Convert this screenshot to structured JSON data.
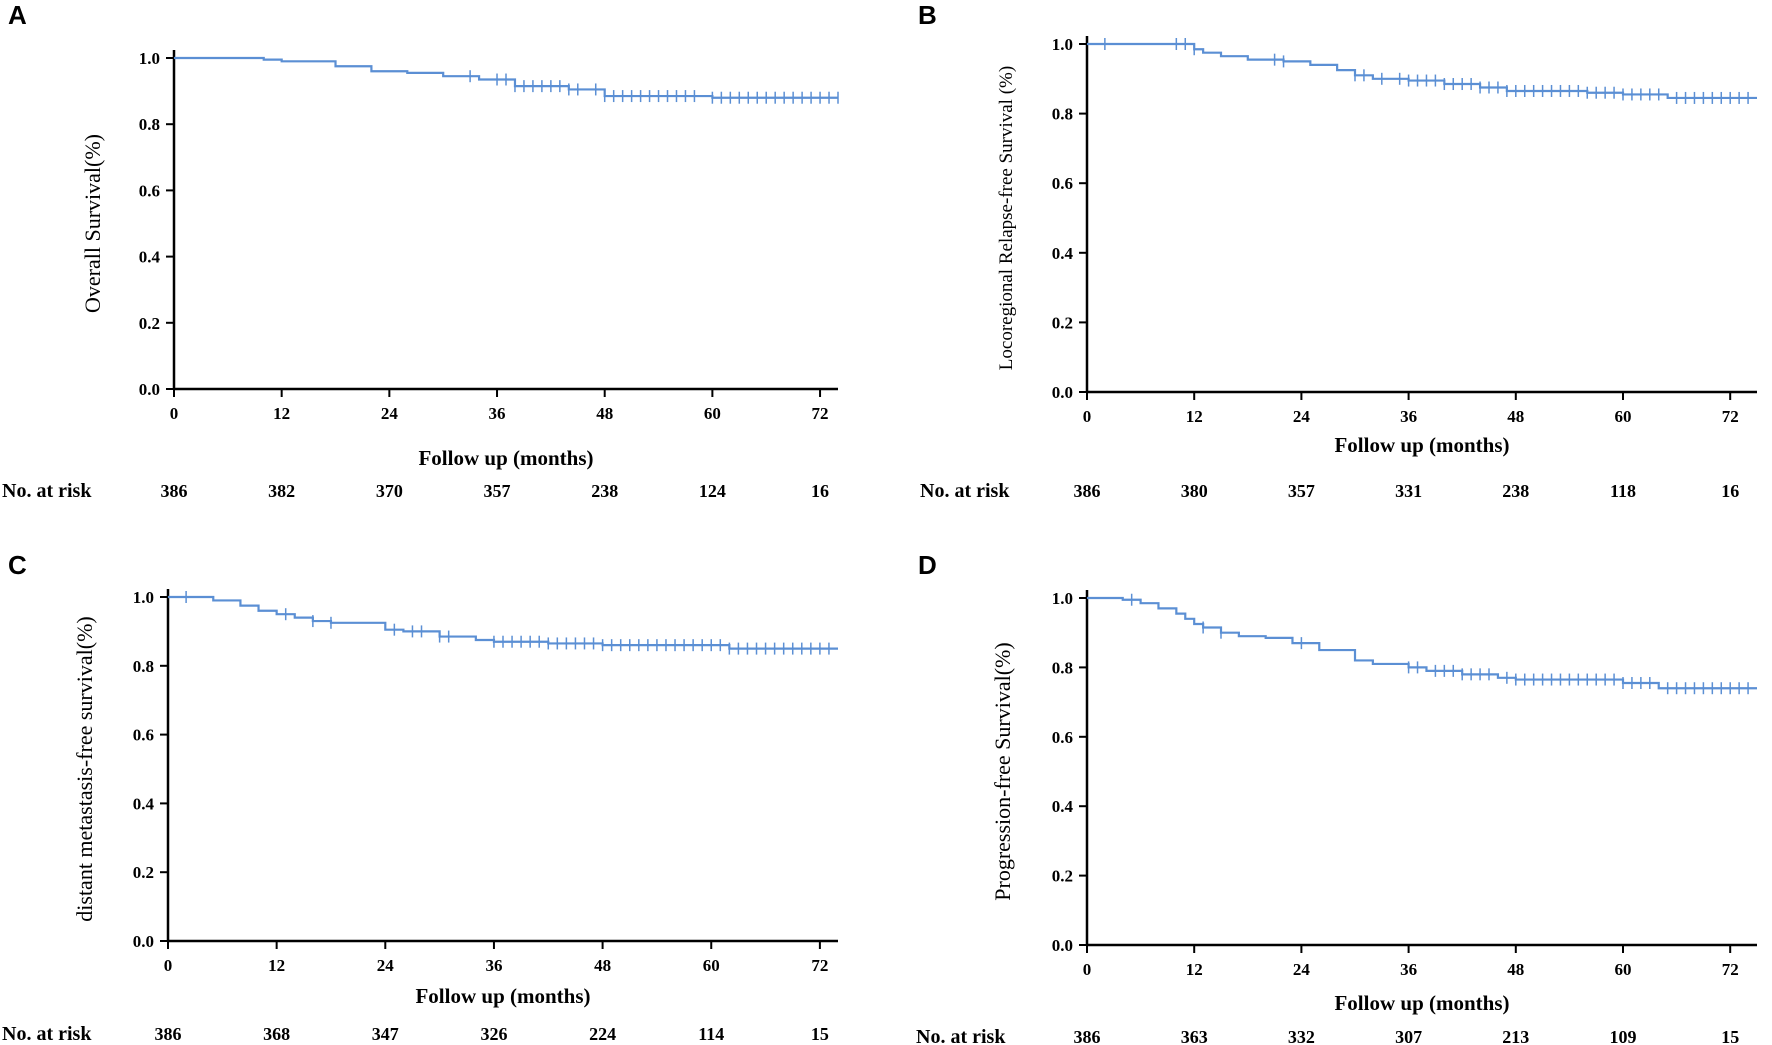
{
  "chart_data": [
    {
      "type": "line",
      "panel_label": "A",
      "title": "",
      "xlabel": "Follow up (months)",
      "ylabel": "Overall Survival(%)",
      "xlim": [
        0,
        74
      ],
      "ylim": [
        0,
        1
      ],
      "xticks": [
        "0",
        "12",
        "24",
        "36",
        "48",
        "60",
        "72"
      ],
      "yticks": [
        "0.0",
        "0.2",
        "0.4",
        "0.6",
        "0.8",
        "1.0"
      ],
      "series": [
        {
          "name": "Overall Survival",
          "color": "#5b8fd4",
          "x": [
            0,
            10,
            12,
            18,
            22,
            26,
            30,
            34,
            38,
            44,
            48,
            56,
            60,
            74
          ],
          "y": [
            1.0,
            0.995,
            0.99,
            0.975,
            0.96,
            0.955,
            0.945,
            0.935,
            0.915,
            0.905,
            0.885,
            0.885,
            0.88,
            0.88
          ],
          "censor_x": [
            33,
            36,
            37,
            38,
            39,
            40,
            41,
            42,
            43,
            44,
            45,
            47,
            48,
            49,
            50,
            51,
            52,
            53,
            54,
            55,
            56,
            57,
            58,
            60,
            61,
            62,
            63,
            64,
            65,
            66,
            67,
            68,
            69,
            70,
            71,
            72,
            73,
            74
          ]
        }
      ],
      "risk_table": {
        "label": "No. at risk",
        "times": [
          0,
          12,
          24,
          36,
          48,
          60,
          72
        ],
        "values": [
          "386",
          "382",
          "370",
          "357",
          "238",
          "124",
          "16"
        ]
      }
    },
    {
      "type": "line",
      "panel_label": "B",
      "title": "",
      "xlabel": "Follow up (months)",
      "ylabel": "Locoregional Relapse-free Survival (%)",
      "xlim": [
        0,
        75
      ],
      "ylim": [
        0,
        1
      ],
      "xticks": [
        "0",
        "12",
        "24",
        "36",
        "48",
        "60",
        "72"
      ],
      "yticks": [
        "0.0",
        "0.2",
        "0.4",
        "0.6",
        "0.8",
        "1.0"
      ],
      "series": [
        {
          "name": "Locoregional Relapse-free Survival",
          "color": "#5b8fd4",
          "x": [
            0,
            10,
            12,
            13,
            15,
            18,
            22,
            25,
            28,
            30,
            32,
            36,
            40,
            44,
            47,
            52,
            56,
            60,
            65,
            75
          ],
          "y": [
            1.0,
            1.0,
            0.985,
            0.975,
            0.965,
            0.955,
            0.95,
            0.94,
            0.925,
            0.91,
            0.9,
            0.895,
            0.885,
            0.875,
            0.865,
            0.865,
            0.86,
            0.855,
            0.845,
            0.845
          ],
          "censor_x": [
            2,
            10,
            11,
            12,
            21,
            22,
            30,
            31,
            33,
            35,
            36,
            37,
            38,
            39,
            40,
            41,
            42,
            43,
            44,
            45,
            46,
            47,
            48,
            49,
            50,
            51,
            52,
            53,
            54,
            55,
            56,
            57,
            58,
            59,
            60,
            61,
            62,
            63,
            64,
            66,
            67,
            68,
            69,
            70,
            71,
            72,
            73,
            74
          ]
        }
      ],
      "risk_table": {
        "label": "No. at risk",
        "times": [
          0,
          12,
          24,
          36,
          48,
          60,
          72
        ],
        "values": [
          "386",
          "380",
          "357",
          "331",
          "238",
          "118",
          "16"
        ]
      }
    },
    {
      "type": "line",
      "panel_label": "C",
      "title": "",
      "xlabel": "Follow up (months)",
      "ylabel": "distant metastasis-free survival(%)",
      "xlim": [
        0,
        74
      ],
      "ylim": [
        0,
        1
      ],
      "xticks": [
        "0",
        "12",
        "24",
        "36",
        "48",
        "60",
        "72"
      ],
      "yticks": [
        "0.0",
        "0.2",
        "0.4",
        "0.6",
        "0.8",
        "1.0"
      ],
      "series": [
        {
          "name": "Distant metastasis-free survival",
          "color": "#5b8fd4",
          "x": [
            0,
            5,
            8,
            10,
            12,
            14,
            16,
            18,
            22,
            24,
            26,
            30,
            34,
            36,
            42,
            48,
            62,
            74
          ],
          "y": [
            1.0,
            0.99,
            0.975,
            0.96,
            0.95,
            0.94,
            0.93,
            0.925,
            0.925,
            0.905,
            0.9,
            0.885,
            0.875,
            0.87,
            0.865,
            0.86,
            0.85,
            0.85
          ],
          "censor_x": [
            2,
            13,
            16,
            18,
            25,
            27,
            28,
            30,
            31,
            36,
            37,
            38,
            39,
            40,
            41,
            42,
            43,
            44,
            45,
            46,
            47,
            48,
            49,
            50,
            51,
            52,
            53,
            54,
            55,
            56,
            57,
            58,
            59,
            60,
            61,
            62,
            63,
            64,
            65,
            66,
            67,
            68,
            69,
            70,
            71,
            72,
            73
          ]
        }
      ],
      "risk_table": {
        "label": "No. at risk",
        "times": [
          0,
          12,
          24,
          36,
          48,
          60,
          72
        ],
        "values": [
          "386",
          "368",
          "347",
          "326",
          "224",
          "114",
          "15"
        ]
      }
    },
    {
      "type": "line",
      "panel_label": "D",
      "title": "",
      "xlabel": "Follow up (months)",
      "ylabel": "Progression-free Survival(%)",
      "xlim": [
        0,
        75
      ],
      "ylim": [
        0,
        1
      ],
      "xticks": [
        "0",
        "12",
        "24",
        "36",
        "48",
        "60",
        "72"
      ],
      "yticks": [
        "0.0",
        "0.2",
        "0.4",
        "0.6",
        "0.8",
        "1.0"
      ],
      "series": [
        {
          "name": "Progression-free Survival",
          "color": "#5b8fd4",
          "x": [
            0,
            4,
            6,
            8,
            10,
            11,
            12,
            13,
            15,
            17,
            20,
            23,
            26,
            30,
            32,
            36,
            38,
            42,
            46,
            48,
            56,
            60,
            64,
            75
          ],
          "y": [
            1.0,
            0.995,
            0.985,
            0.97,
            0.955,
            0.94,
            0.925,
            0.915,
            0.9,
            0.89,
            0.885,
            0.87,
            0.85,
            0.82,
            0.81,
            0.8,
            0.79,
            0.78,
            0.77,
            0.765,
            0.765,
            0.755,
            0.74,
            0.74
          ],
          "censor_x": [
            5,
            13,
            15,
            24,
            36,
            37,
            39,
            40,
            41,
            42,
            43,
            44,
            45,
            47,
            48,
            49,
            50,
            51,
            52,
            53,
            54,
            55,
            56,
            57,
            58,
            59,
            60,
            61,
            62,
            63,
            65,
            66,
            67,
            68,
            69,
            70,
            71,
            72,
            73,
            74
          ]
        }
      ],
      "risk_table": {
        "label": "No. at risk",
        "times": [
          0,
          12,
          24,
          36,
          48,
          60,
          72
        ],
        "values": [
          "386",
          "363",
          "332",
          "307",
          "213",
          "109",
          "15"
        ]
      }
    }
  ]
}
